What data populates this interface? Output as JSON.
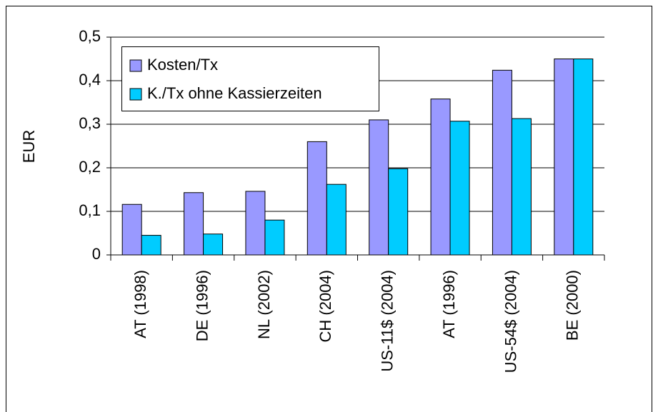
{
  "chart_data": {
    "type": "bar",
    "y_label": "EUR",
    "categories": [
      "AT (1998)",
      "DE (1996)",
      "NL (2002)",
      "CH (2004)",
      "US-11$ (2004)",
      "AT (1996)",
      "US-54$ (2004)",
      "BE (2000)"
    ],
    "series": [
      {
        "name": "Kosten/Tx",
        "color": "#9999ff",
        "values": [
          0.116,
          0.143,
          0.146,
          0.26,
          0.31,
          0.358,
          0.424,
          0.45
        ]
      },
      {
        "name": "K./Tx ohne Kassierzeiten",
        "color": "#00ccff",
        "values": [
          0.045,
          0.048,
          0.08,
          0.162,
          0.198,
          0.307,
          0.313,
          0.45
        ]
      }
    ],
    "ylim": [
      0,
      0.5
    ],
    "yticks": [
      0,
      {
        "value": 0.1,
        "label": "0,1"
      },
      {
        "value": 0.2,
        "label": "0,2"
      },
      {
        "value": 0.3,
        "label": "0,3"
      },
      {
        "value": 0.4,
        "label": "0,4"
      },
      {
        "value": 0.5,
        "label": "0,5"
      }
    ],
    "grid": true,
    "legend": "upper left"
  }
}
